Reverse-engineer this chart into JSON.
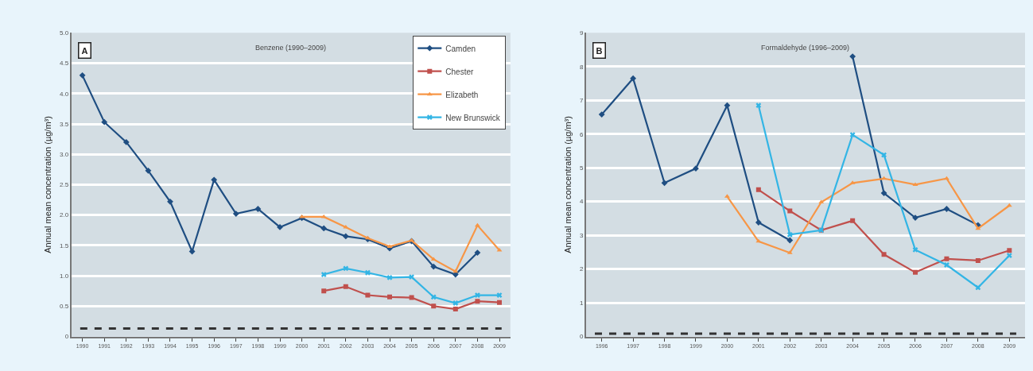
{
  "chart_data": [
    {
      "type": "line",
      "title": "Benzene (1990–2009)",
      "ylabel": "Annual mean concentration (µg/m³)",
      "annotations": [
        "A"
      ],
      "categories": [
        "1990",
        "1991",
        "1992",
        "1993",
        "1994",
        "1995",
        "1996",
        "1997",
        "1998",
        "1999",
        "2000",
        "2001",
        "2002",
        "2003",
        "2004",
        "2005",
        "2006",
        "2007",
        "2008",
        "2009"
      ],
      "series": [
        {
          "name": "Camden",
          "color": "#1f4e82",
          "marker": "diamond",
          "values": [
            4.3,
            3.53,
            3.2,
            2.73,
            2.22,
            1.4,
            2.58,
            2.02,
            2.1,
            1.8,
            1.95,
            1.78,
            1.65,
            1.6,
            1.45,
            1.57,
            1.15,
            1.02,
            1.38,
            null
          ]
        },
        {
          "name": "Chester",
          "color": "#c0504d",
          "marker": "square",
          "values": [
            null,
            null,
            null,
            null,
            null,
            null,
            null,
            null,
            null,
            null,
            null,
            0.75,
            0.82,
            0.68,
            0.65,
            0.64,
            0.5,
            0.45,
            0.58,
            0.56
          ]
        },
        {
          "name": "Elizabeth",
          "color": "#f79646",
          "marker": "triangle",
          "values": [
            null,
            null,
            null,
            null,
            null,
            null,
            null,
            null,
            null,
            null,
            1.97,
            1.97,
            1.8,
            1.62,
            1.48,
            1.58,
            1.27,
            1.07,
            1.83,
            1.42
          ]
        },
        {
          "name": "New Brunswick",
          "color": "#33b5e5",
          "marker": "cross",
          "values": [
            null,
            null,
            null,
            null,
            null,
            null,
            null,
            null,
            null,
            null,
            null,
            1.02,
            1.12,
            1.05,
            0.97,
            0.98,
            0.65,
            0.55,
            0.68,
            0.68
          ]
        }
      ],
      "ylim": [
        0,
        5
      ],
      "yticks": [
        0,
        0.5,
        {
          "value": 1,
          "label": "1.0"
        },
        1.5,
        {
          "value": 2,
          "label": "2.0"
        },
        2.5,
        {
          "value": 3,
          "label": "3.0"
        },
        3.5,
        {
          "value": 4,
          "label": "4.0"
        },
        4.5,
        {
          "value": 5,
          "label": "5.0"
        }
      ],
      "grid": "y",
      "legend": "top right",
      "ref_lines": [
        {
          "axis": "y",
          "value": 0.13,
          "label": null,
          "color": "#333333",
          "line_style": "dashed"
        }
      ]
    },
    {
      "type": "line",
      "title": "Formaldehyde (1996–2009)",
      "ylabel": "Annual mean concentration (µg/m³)",
      "annotations": [
        "B"
      ],
      "categories": [
        "1996",
        "1997",
        "1998",
        "1999",
        "2000",
        "2001",
        "2002",
        "2003",
        "2004",
        "2005",
        "2006",
        "2007",
        "2008",
        "2009"
      ],
      "series": [
        {
          "color": "#1f4e82",
          "marker": "diamond",
          "values": [
            6.58,
            7.65,
            4.55,
            4.98,
            6.85,
            3.38,
            2.85,
            null,
            8.3,
            4.25,
            3.52,
            3.78,
            3.3,
            null
          ]
        },
        {
          "color": "#c0504d",
          "marker": "square",
          "values": [
            null,
            null,
            null,
            null,
            null,
            4.35,
            3.72,
            3.15,
            3.43,
            2.43,
            1.9,
            2.3,
            2.25,
            2.55
          ]
        },
        {
          "color": "#f79646",
          "marker": "triangle",
          "values": [
            null,
            null,
            null,
            null,
            4.15,
            2.82,
            2.48,
            3.98,
            4.55,
            4.68,
            4.5,
            4.68,
            3.2,
            3.88
          ]
        },
        {
          "color": "#33b5e5",
          "marker": "cross",
          "values": [
            null,
            null,
            null,
            null,
            null,
            6.85,
            3.02,
            3.15,
            5.98,
            5.38,
            2.57,
            2.12,
            1.45,
            2.4
          ]
        }
      ],
      "ylim": [
        0,
        9
      ],
      "yticks": [
        0,
        1,
        2,
        3,
        4,
        5,
        6,
        7,
        8,
        9
      ],
      "grid": "y",
      "legend": false,
      "ref_lines": [
        {
          "axis": "y",
          "value": 0.08,
          "label": null,
          "color": "#333333",
          "line_style": "dashed"
        }
      ]
    }
  ]
}
